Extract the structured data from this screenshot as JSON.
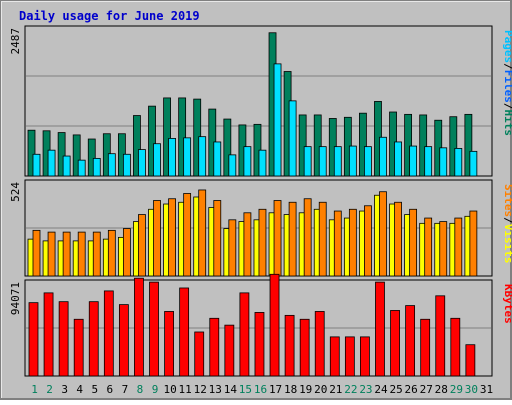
{
  "chart_data": {
    "title": "Daily usage for June 2019",
    "type": "bar",
    "categories": [
      "1",
      "2",
      "3",
      "4",
      "5",
      "6",
      "7",
      "8",
      "9",
      "10",
      "11",
      "12",
      "13",
      "14",
      "15",
      "16",
      "17",
      "18",
      "19",
      "20",
      "21",
      "22",
      "23",
      "24",
      "25",
      "26",
      "27",
      "28",
      "29",
      "30",
      "31"
    ],
    "weekend_days": [
      "1",
      "2",
      "8",
      "9",
      "15",
      "16",
      "22",
      "23",
      "29",
      "30"
    ],
    "colors": {
      "background": "#c0c0c0",
      "frame": "#e0e0e0",
      "title": "#0000cc",
      "hits": "#00805c",
      "files": "#00e0ff",
      "pages": "#00c0ff",
      "visits": "#ffff00",
      "sites": "#ff8000",
      "kbytes": "#ff0000",
      "weekday_label": "#000000",
      "weekend_label": "#00805c"
    },
    "panels": [
      {
        "id": "top",
        "ymax_label": "2487",
        "ymax": 2487,
        "axis_title": [
          "Pages",
          "/",
          "Files",
          "/",
          "Hits"
        ],
        "axis_title_colors": [
          "#00c0ff",
          "#000000",
          "#0060ff",
          "#000000",
          "#00805c"
        ],
        "series": [
          {
            "name": "Hits",
            "color": "#00805c",
            "values": [
              780,
              770,
              740,
              700,
              630,
              720,
              720,
              1030,
              1190,
              1330,
              1330,
              1310,
              1140,
              970,
              870,
              880,
              2440,
              1780,
              1040,
              1040,
              980,
              1000,
              1070,
              1270,
              1090,
              1050,
              1040,
              950,
              1010,
              1050,
              0
            ]
          },
          {
            "name": "Files",
            "color": "#00e0ff",
            "values": [
              370,
              440,
              340,
              270,
              300,
              380,
              370,
              450,
              550,
              640,
              650,
              670,
              580,
              360,
              500,
              440,
              1910,
              1280,
              500,
              500,
              500,
              510,
              500,
              660,
              580,
              510,
              500,
              480,
              470,
              420,
              0
            ]
          }
        ]
      },
      {
        "id": "middle",
        "ymax_label": "524",
        "ymax": 524,
        "axis_title": [
          "Sites",
          "/",
          "Visits"
        ],
        "axis_title_colors": [
          "#ff8000",
          "#000000",
          "#ffff00"
        ],
        "series": [
          {
            "name": "Visits",
            "color": "#ffff00",
            "values": [
              210,
              200,
              200,
              200,
              200,
              210,
              220,
              310,
              380,
              410,
              420,
              450,
              390,
              270,
              310,
              320,
              360,
              350,
              360,
              380,
              320,
              330,
              370,
              460,
              410,
              350,
              300,
              300,
              300,
              340,
              0
            ]
          },
          {
            "name": "Sites",
            "color": "#ff8000",
            "values": [
              260,
              250,
              250,
              250,
              250,
              260,
              270,
              350,
              430,
              440,
              470,
              490,
              430,
              320,
              360,
              380,
              430,
              420,
              440,
              420,
              370,
              380,
              400,
              480,
              420,
              380,
              330,
              310,
              330,
              370,
              0
            ]
          }
        ]
      },
      {
        "id": "bottom",
        "ymax_label": "94071",
        "ymax": 94071,
        "axis_title": [
          "KBytes"
        ],
        "axis_title_colors": [
          "#ff0000"
        ],
        "series": [
          {
            "name": "KBytes",
            "color": "#ff0000",
            "values": [
              75000,
              85000,
              76000,
              58000,
              76000,
              87000,
              73000,
              100000,
              96000,
              66000,
              90000,
              45000,
              59000,
              52000,
              85000,
              65000,
              104000,
              62000,
              58000,
              66000,
              40000,
              40000,
              40000,
              96000,
              67000,
              72000,
              58000,
              82000,
              59000,
              32000,
              0
            ]
          }
        ]
      }
    ]
  }
}
